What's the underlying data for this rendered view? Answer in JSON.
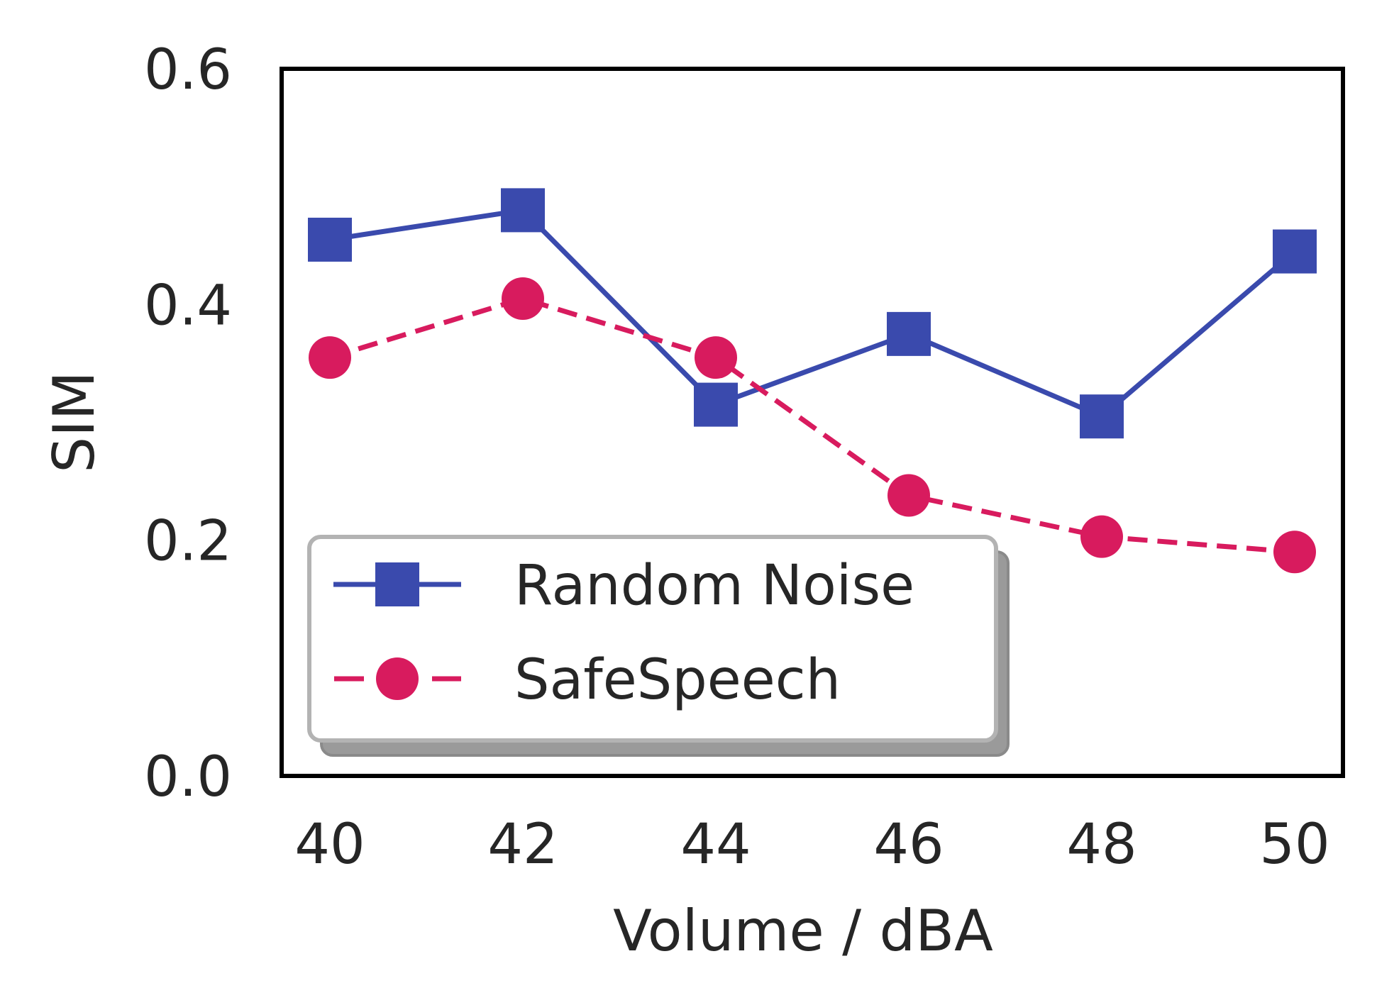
{
  "chart_data": {
    "type": "line",
    "title": "",
    "xlabel": "Volume / dBA",
    "ylabel": "SIM",
    "x": [
      40,
      42,
      44,
      46,
      48,
      50
    ],
    "x_tick_labels": [
      "40",
      "42",
      "44",
      "46",
      "48",
      "50"
    ],
    "y_tick_values": [
      0.0,
      0.2,
      0.4,
      0.6
    ],
    "y_tick_labels": [
      "0.0",
      "0.2",
      "0.4",
      "0.6"
    ],
    "xlim": [
      39.5,
      50.5
    ],
    "ylim": [
      0.0,
      0.6
    ],
    "grid": false,
    "legend_position": "lower-left",
    "series": [
      {
        "name": "Random Noise",
        "values": [
          0.455,
          0.48,
          0.315,
          0.375,
          0.305,
          0.445
        ],
        "color": "#3a4aad",
        "line_style": "solid",
        "marker": "square"
      },
      {
        "name": "SafeSpeech",
        "values": [
          0.355,
          0.405,
          0.355,
          0.238,
          0.203,
          0.19
        ],
        "color": "#d81b5e",
        "line_style": "dashed",
        "marker": "circle"
      }
    ]
  }
}
